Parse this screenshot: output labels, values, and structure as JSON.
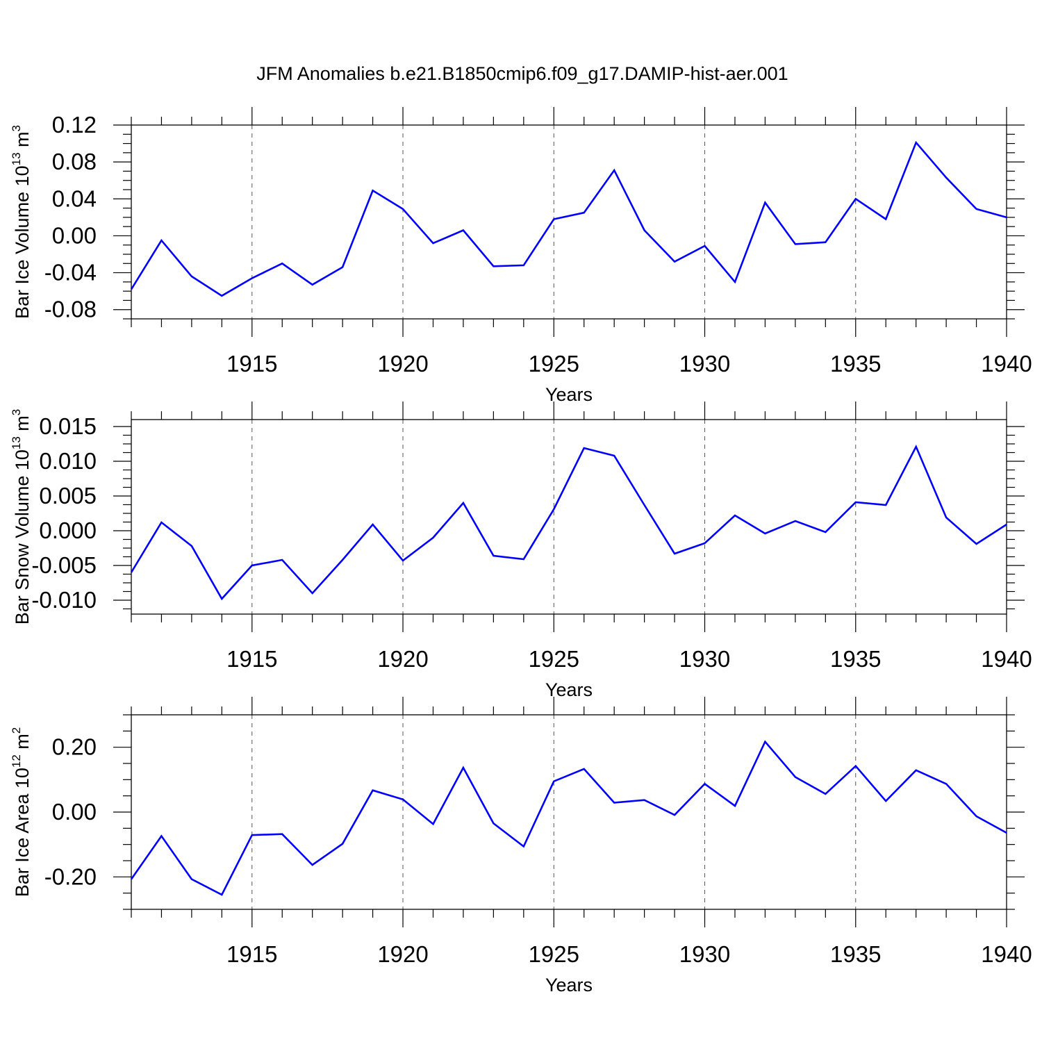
{
  "title": "JFM Anomalies b.e21.B1850cmip6.f09_g17.DAMIP-hist-aer.001",
  "colors": {
    "series": "#0000ff",
    "axis": "#000000",
    "grid": "#555555",
    "background": "#ffffff"
  },
  "chart_data": [
    {
      "type": "line",
      "ylabel": {
        "text": "Bar Ice Volume 10",
        "exp": "13",
        "unit": " m",
        "unit_exp": "3"
      },
      "xlabel": "Years",
      "xlim": [
        1911,
        1940
      ],
      "ylim": [
        -0.09,
        0.12
      ],
      "yticks": [
        "0.12",
        "0.08",
        "0.04",
        "0.00",
        "-0.04",
        "-0.08"
      ],
      "ytick_values": [
        0.12,
        0.08,
        0.04,
        0.0,
        -0.04,
        -0.08
      ],
      "xticks": [
        "1915",
        "1920",
        "1925",
        "1930",
        "1935",
        "1940"
      ],
      "xtick_values": [
        1915,
        1920,
        1925,
        1930,
        1935,
        1940
      ],
      "grid": "x-dashed",
      "series": [
        {
          "x": [
            1911,
            1912,
            1913,
            1914,
            1915,
            1916,
            1917,
            1918,
            1919,
            1920,
            1921,
            1922,
            1923,
            1924,
            1925,
            1926,
            1927,
            1928,
            1929,
            1930,
            1931,
            1932,
            1933,
            1934,
            1935,
            1936,
            1937,
            1938,
            1939,
            1940
          ],
          "values": [
            -0.058,
            -0.005,
            -0.044,
            -0.065,
            -0.046,
            -0.03,
            -0.053,
            -0.034,
            0.049,
            0.029,
            -0.008,
            0.006,
            -0.033,
            -0.032,
            0.018,
            0.025,
            0.071,
            0.006,
            -0.028,
            -0.011,
            -0.05,
            0.036,
            -0.009,
            -0.007,
            0.04,
            0.018,
            0.101,
            0.063,
            0.029,
            0.02
          ]
        }
      ]
    },
    {
      "type": "line",
      "ylabel": {
        "text": "Bar Snow Volume 10",
        "exp": "13",
        "unit": " m",
        "unit_exp": "3"
      },
      "xlabel": "Years",
      "xlim": [
        1911,
        1940
      ],
      "ylim": [
        -0.012,
        0.016
      ],
      "yticks": [
        "0.015",
        "0.010",
        "0.005",
        "0.000",
        "-0.005",
        "-0.010"
      ],
      "ytick_values": [
        0.015,
        0.01,
        0.005,
        0.0,
        -0.005,
        -0.01
      ],
      "xticks": [
        "1915",
        "1920",
        "1925",
        "1930",
        "1935",
        "1940"
      ],
      "xtick_values": [
        1915,
        1920,
        1925,
        1930,
        1935,
        1940
      ],
      "grid": "x-dashed",
      "series": [
        {
          "x": [
            1911,
            1912,
            1913,
            1914,
            1915,
            1916,
            1917,
            1918,
            1919,
            1920,
            1921,
            1922,
            1923,
            1924,
            1925,
            1926,
            1927,
            1928,
            1929,
            1930,
            1931,
            1932,
            1933,
            1934,
            1935,
            1936,
            1937,
            1938,
            1939,
            1940
          ],
          "values": [
            -0.006,
            0.0012,
            -0.0022,
            -0.0098,
            -0.005,
            -0.0042,
            -0.009,
            -0.0042,
            0.0009,
            -0.0043,
            -0.001,
            0.004,
            -0.0036,
            -0.0041,
            0.0031,
            0.0119,
            0.0108,
            0.0037,
            -0.0033,
            -0.0018,
            0.0022,
            -0.0004,
            0.0014,
            -0.0002,
            0.0041,
            0.0037,
            0.0121,
            0.0019,
            -0.0019,
            0.0009
          ]
        }
      ]
    },
    {
      "type": "line",
      "ylabel": {
        "text": "Bar Ice Area 10",
        "exp": "12",
        "unit": " m",
        "unit_exp": "2"
      },
      "xlabel": "Years",
      "xlim": [
        1911,
        1940
      ],
      "ylim": [
        -0.3,
        0.3
      ],
      "yticks": [
        "0.20",
        "0.00",
        "-0.20"
      ],
      "ytick_values": [
        0.2,
        0.0,
        -0.2
      ],
      "xticks": [
        "1915",
        "1920",
        "1925",
        "1930",
        "1935",
        "1940"
      ],
      "xtick_values": [
        1915,
        1920,
        1925,
        1930,
        1935,
        1940
      ],
      "grid": "x-dashed",
      "series": [
        {
          "x": [
            1911,
            1912,
            1913,
            1914,
            1915,
            1916,
            1917,
            1918,
            1919,
            1920,
            1921,
            1922,
            1923,
            1924,
            1925,
            1926,
            1927,
            1928,
            1929,
            1930,
            1931,
            1932,
            1933,
            1934,
            1935,
            1936,
            1937,
            1938,
            1939,
            1940
          ],
          "values": [
            -0.207,
            -0.074,
            -0.207,
            -0.255,
            -0.071,
            -0.068,
            -0.163,
            -0.098,
            0.067,
            0.039,
            -0.037,
            0.137,
            -0.035,
            -0.106,
            0.095,
            0.133,
            0.029,
            0.037,
            -0.009,
            0.087,
            0.019,
            0.217,
            0.108,
            0.056,
            0.142,
            0.034,
            0.129,
            0.087,
            -0.013,
            -0.064
          ]
        }
      ]
    }
  ]
}
